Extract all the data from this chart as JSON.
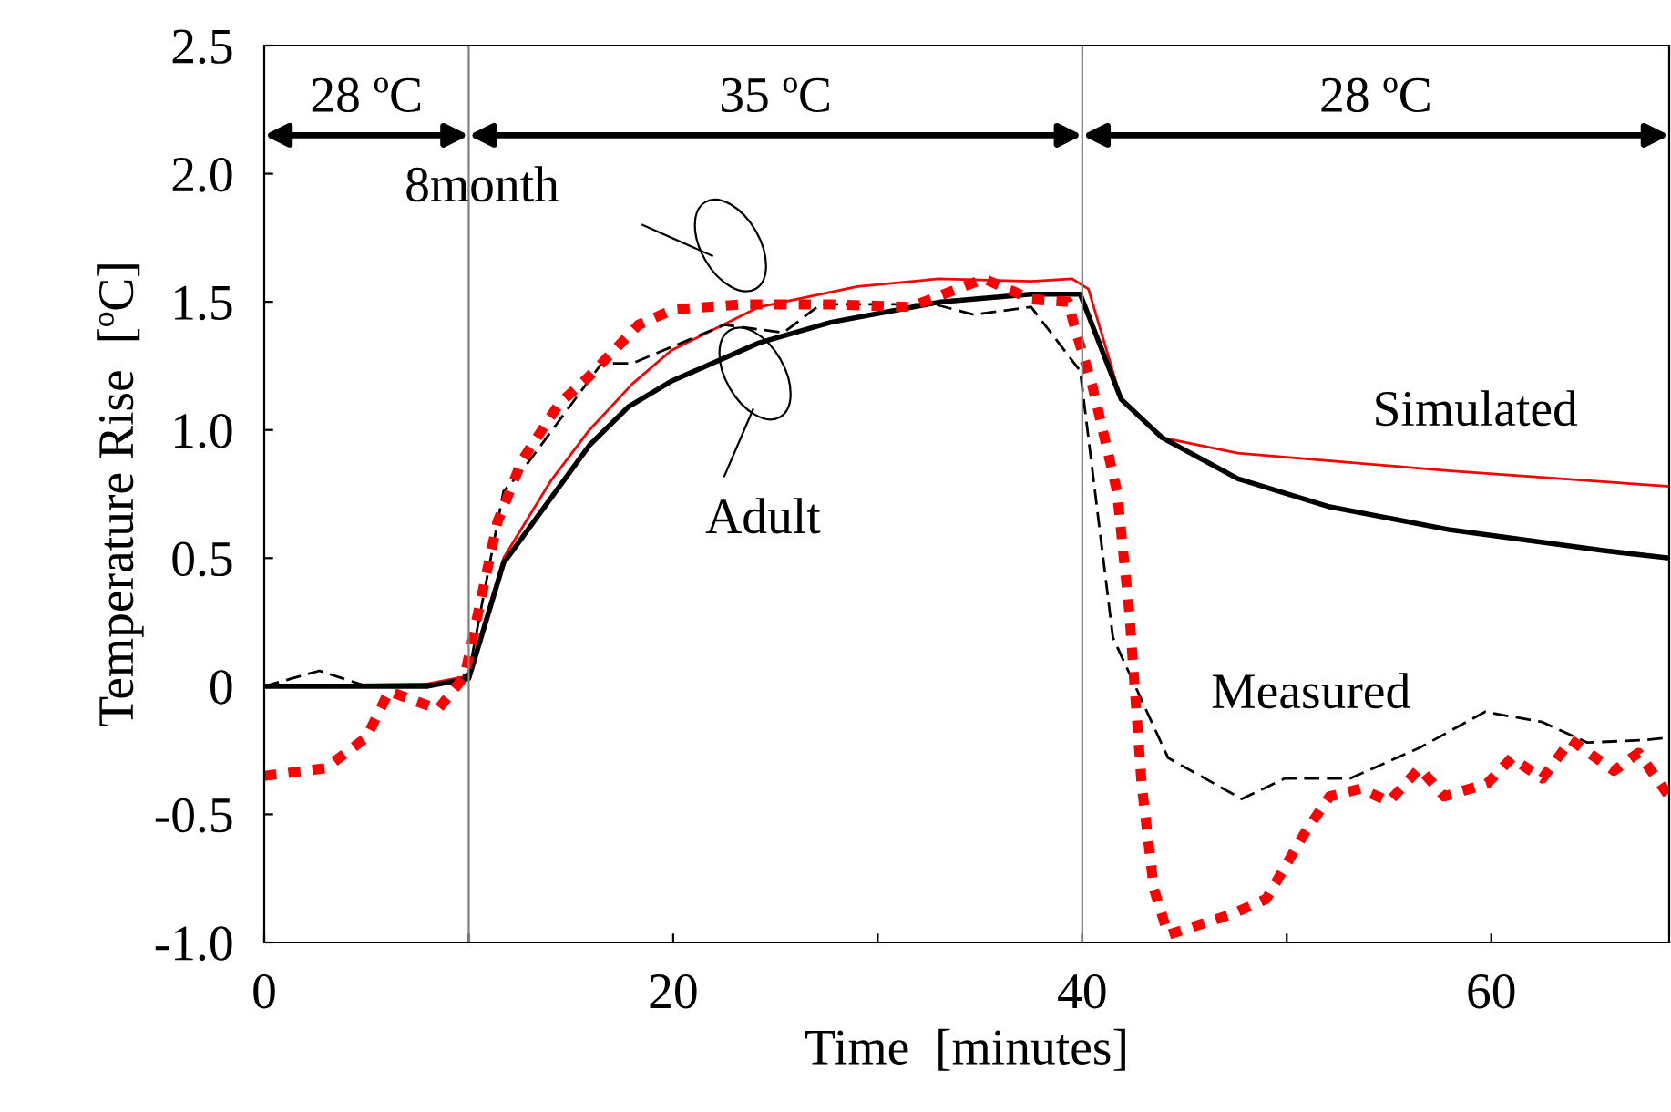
{
  "chart_data": {
    "type": "line",
    "xlabel": "Time  [minutes]",
    "ylabel": "Temperature Rise  [ºC]",
    "xlim": [
      0,
      68.7
    ],
    "ylim": [
      -1.0,
      2.5
    ],
    "xticks": [
      0,
      {
        "value": 10,
        "label": null
      },
      20,
      {
        "value": 30,
        "label": null
      },
      40,
      {
        "value": 50,
        "label": null
      },
      60
    ],
    "yticks": [
      {
        "value": -1.0,
        "label": "-1.0"
      },
      -0.5,
      0,
      0.5,
      {
        "value": 1.0,
        "label": "1.0"
      },
      1.5,
      {
        "value": 2.0,
        "label": "2.0"
      },
      2.5
    ],
    "grid": false,
    "legend": false,
    "series": [
      {
        "color": "#ff0000",
        "line_style": "solid",
        "x": [
          0,
          8,
          10,
          11.7,
          14,
          15.9,
          18,
          19.9,
          24.2,
          29,
          33,
          37.5,
          39.5,
          40.3,
          41.9,
          43.9,
          47.6,
          58.0,
          68.7
        ],
        "values": [
          0,
          0.01,
          0.04,
          0.5,
          0.8,
          1.0,
          1.18,
          1.31,
          1.48,
          1.56,
          1.59,
          1.58,
          1.59,
          1.55,
          1.12,
          0.97,
          0.91,
          0.84,
          0.78
        ]
      },
      {
        "color": "#000000",
        "line_style": "solid",
        "x": [
          0,
          8,
          10,
          11.7,
          15.9,
          17.8,
          19.9,
          24.2,
          27.7,
          33.1,
          37.5,
          39.9,
          41.9,
          43.9,
          47.6,
          52.1,
          58.0,
          65.4,
          68.7
        ],
        "values": [
          0,
          0,
          0.03,
          0.48,
          0.94,
          1.09,
          1.19,
          1.34,
          1.42,
          1.5,
          1.53,
          1.53,
          1.12,
          0.97,
          0.81,
          0.7,
          0.61,
          0.53,
          0.5
        ]
      },
      {
        "color": "#000000",
        "line_style": "dashed",
        "x": [
          0,
          2.7,
          5,
          9,
          10,
          11.7,
          12.6,
          16.5,
          18,
          22.5,
          25.4,
          27.2,
          32.8,
          34.7,
          37.5,
          39.9,
          41.5,
          44.2,
          47.8,
          49.9,
          53.1,
          56.5,
          59.7,
          62.5,
          64.7,
          67.5,
          68.7
        ],
        "values": [
          0,
          0.06,
          0,
          0.01,
          0.05,
          0.76,
          0.84,
          1.26,
          1.26,
          1.41,
          1.38,
          1.49,
          1.49,
          1.45,
          1.48,
          1.23,
          0.19,
          -0.28,
          -0.44,
          -0.36,
          -0.36,
          -0.24,
          -0.1,
          -0.14,
          -0.22,
          -0.21,
          -0.2
        ]
      },
      {
        "color": "#ff0000",
        "line_style": "dotted",
        "x": [
          0,
          3,
          5,
          6.1,
          8.5,
          9.8,
          11.4,
          12.6,
          14.4,
          15.9,
          18.3,
          20,
          23.3,
          27.7,
          31.6,
          35.2,
          37.5,
          39.3,
          39.6,
          40.5,
          41.7,
          42.3,
          42.9,
          43.5,
          44.2,
          47.3,
          49,
          50.9,
          52.1,
          53.6,
          55,
          56.5,
          57.7,
          59.8,
          61,
          62.5,
          63.9,
          66,
          67.2,
          68.7
        ],
        "values": [
          -0.35,
          -0.32,
          -0.2,
          -0.02,
          -0.09,
          0.04,
          0.64,
          0.88,
          1.1,
          1.21,
          1.41,
          1.47,
          1.49,
          1.49,
          1.48,
          1.59,
          1.51,
          1.5,
          1.41,
          1.17,
          0.76,
          0.29,
          -0.38,
          -0.79,
          -0.97,
          -0.89,
          -0.83,
          -0.57,
          -0.43,
          -0.4,
          -0.45,
          -0.32,
          -0.43,
          -0.38,
          -0.28,
          -0.36,
          -0.21,
          -0.33,
          -0.26,
          -0.43
        ]
      }
    ],
    "ref_lines": [
      {
        "axis": "x",
        "value": 10,
        "color": "#808080"
      },
      {
        "axis": "x",
        "value": 40,
        "color": "#808080"
      }
    ],
    "annotations": [
      "28 ºC",
      "35 ºC",
      "28 ºC",
      "8month",
      "Adult",
      "Simulated",
      "Measured"
    ]
  }
}
